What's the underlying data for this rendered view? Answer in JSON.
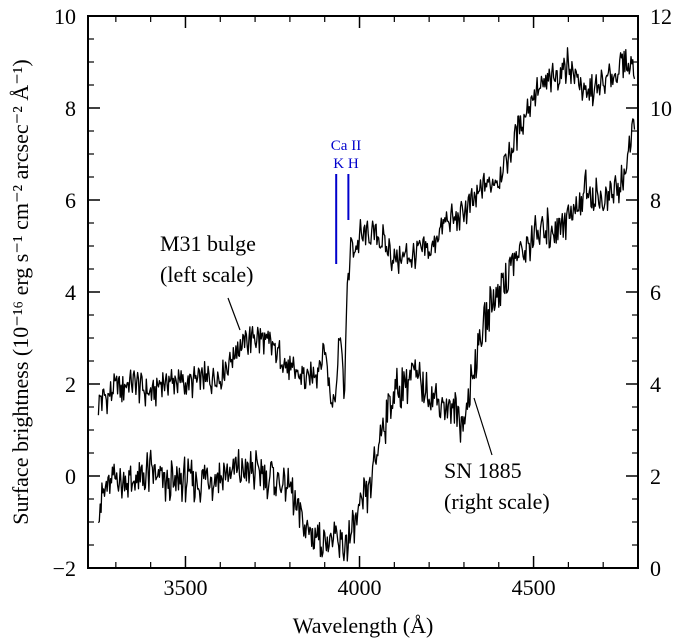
{
  "chart_data": {
    "type": "line",
    "xlabel": "Wavelength  (Å)",
    "ylabel_left": "Surface brightness  (10⁻¹⁶ erg s⁻¹ cm⁻² arcsec⁻² Å⁻¹)",
    "xlim": [
      3220,
      4800
    ],
    "ylim_left": [
      -2,
      10
    ],
    "ylim_right": [
      0,
      12
    ],
    "x_ticks": [
      3500,
      4000,
      4500
    ],
    "x_tick_labels": [
      "3500",
      "4000",
      "4500"
    ],
    "y_left_ticks": [
      -2,
      0,
      2,
      4,
      6,
      8,
      10
    ],
    "y_left_tick_labels": [
      "−2",
      "0",
      "2",
      "4",
      "6",
      "8",
      "10"
    ],
    "y_right_ticks": [
      0,
      2,
      4,
      6,
      8,
      10,
      12
    ],
    "y_right_tick_labels": [
      "0",
      "2",
      "4",
      "6",
      "8",
      "10",
      "12"
    ],
    "grid": false,
    "series": [
      {
        "name": "M31 bulge",
        "axis": "left",
        "x": [
          3250,
          3300,
          3350,
          3400,
          3450,
          3500,
          3550,
          3600,
          3650,
          3700,
          3750,
          3800,
          3850,
          3880,
          3900,
          3920,
          3930,
          3945,
          3955,
          3965,
          3975,
          3990,
          4000,
          4050,
          4100,
          4150,
          4200,
          4250,
          4300,
          4350,
          4400,
          4450,
          4500,
          4550,
          4600,
          4650,
          4700,
          4750,
          4790
        ],
        "y": [
          1.6,
          1.9,
          2.0,
          1.8,
          2.1,
          2.0,
          2.1,
          2.2,
          2.8,
          3.0,
          2.8,
          2.3,
          2.1,
          2.3,
          2.8,
          1.6,
          1.8,
          3.3,
          1.6,
          4.0,
          5.0,
          5.0,
          5.2,
          5.3,
          4.7,
          4.8,
          4.9,
          5.5,
          5.7,
          6.2,
          6.5,
          7.4,
          8.3,
          8.6,
          9.0,
          8.3,
          8.5,
          8.9,
          9.0
        ]
      },
      {
        "name": "SN 1885",
        "axis": "right",
        "x": [
          3250,
          3300,
          3350,
          3400,
          3450,
          3500,
          3550,
          3600,
          3650,
          3700,
          3750,
          3800,
          3850,
          3900,
          3950,
          3980,
          4000,
          4030,
          4060,
          4100,
          4150,
          4200,
          4250,
          4300,
          4320,
          4350,
          4400,
          4450,
          4500,
          4550,
          4600,
          4650,
          4700,
          4750,
          4790
        ],
        "y": [
          1.4,
          2.0,
          1.8,
          2.1,
          1.8,
          1.9,
          1.9,
          2.0,
          2.1,
          2.1,
          2.0,
          1.7,
          0.8,
          0.6,
          0.5,
          0.7,
          1.2,
          1.8,
          2.9,
          3.8,
          4.2,
          3.8,
          3.5,
          3.2,
          4.0,
          5.2,
          6.1,
          6.7,
          7.2,
          7.4,
          7.6,
          8.2,
          8.0,
          8.3,
          9.5
        ]
      }
    ],
    "annotations": {
      "ca_label": "Ca II",
      "kh_label": "K H",
      "m31_label_1": "M31 bulge",
      "m31_label_2": "(left scale)",
      "sn_label_1": "SN 1885",
      "sn_label_2": "(right scale)",
      "line_marker_x": [
        3933,
        3968
      ],
      "line_color": "#0000cc"
    }
  }
}
